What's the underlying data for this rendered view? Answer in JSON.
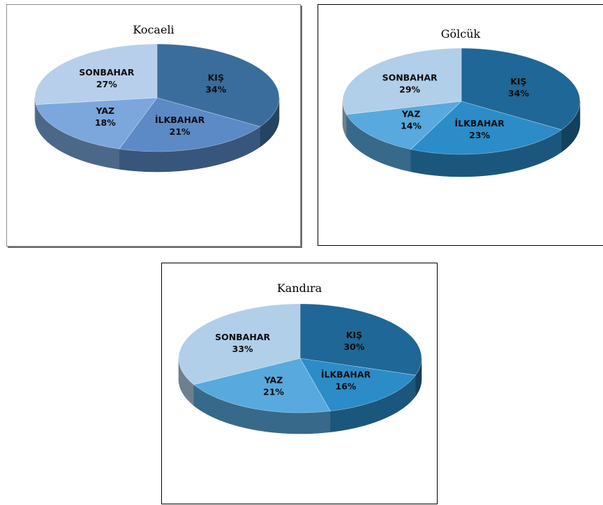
{
  "chart_data": [
    {
      "type": "pie",
      "title": "Kocaeli",
      "categories": [
        "KIŞ",
        "İLKBAHAR",
        "YAZ",
        "SONBAHAR"
      ],
      "values": [
        34,
        21,
        18,
        27
      ],
      "value_labels": [
        "34%",
        "21%",
        "18%",
        "27%"
      ],
      "colors": [
        "#3a6d9c",
        "#5b8ac6",
        "#7ba7dd",
        "#b7cfea"
      ],
      "style": "3d",
      "legend": "none"
    },
    {
      "type": "pie",
      "title": "Gölcük",
      "categories": [
        "KIŞ",
        "İLKBAHAR",
        "YAZ",
        "SONBAHAR"
      ],
      "values": [
        34,
        23,
        14,
        29
      ],
      "value_labels": [
        "34%",
        "23%",
        "14%",
        "29%"
      ],
      "colors": [
        "#1f6796",
        "#2b8cc8",
        "#58a9de",
        "#b1cfe9"
      ],
      "style": "3d",
      "legend": "none"
    },
    {
      "type": "pie",
      "title": "Kandıra",
      "categories": [
        "KIŞ",
        "İLKBAHAR",
        "YAZ",
        "SONBAHAR"
      ],
      "values": [
        30,
        16,
        21,
        33
      ],
      "value_labels": [
        "30%",
        "16%",
        "21%",
        "33%"
      ],
      "colors": [
        "#1f6796",
        "#2b8cc8",
        "#58a9de",
        "#b1cfe9"
      ],
      "style": "3d",
      "legend": "none"
    }
  ]
}
